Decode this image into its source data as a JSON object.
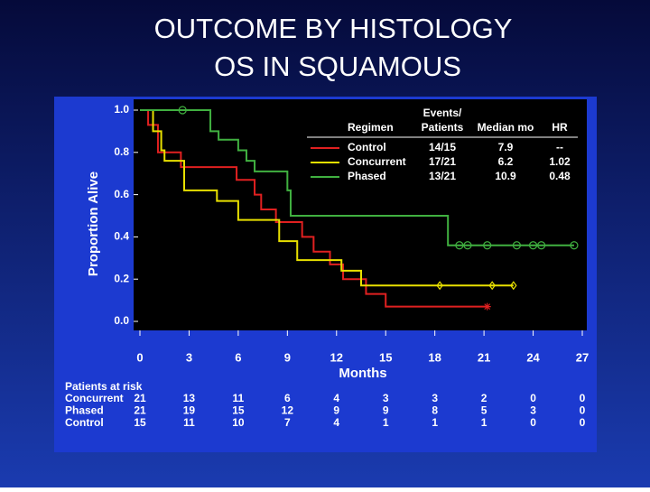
{
  "chart_data": {
    "type": "line",
    "step": true,
    "title": [
      "OUTCOME BY HISTOLOGY",
      "OS IN SQUAMOUS"
    ],
    "y_label": "Proportion Alive",
    "x_label": "Months",
    "xlim": [
      0,
      27
    ],
    "xticks": [
      0,
      3,
      6,
      9,
      12,
      15,
      18,
      21,
      24,
      27
    ],
    "ylim": [
      0,
      1.0
    ],
    "yticks": [
      {
        "value": 0,
        "label": "0.0"
      },
      0.2,
      0.4,
      0.6,
      0.8,
      {
        "value": 1,
        "label": "1.0"
      }
    ],
    "series": [
      {
        "name": "Control",
        "color": "#e02020",
        "marker": "star",
        "x": [
          0,
          0.5,
          1.1,
          2.5,
          5.9,
          7.0,
          7.4,
          8.3,
          9.9,
          10.6,
          11.6,
          12.4,
          13.8,
          15.0,
          21.2
        ],
        "values": [
          1.0,
          0.93,
          0.8,
          0.73,
          0.67,
          0.6,
          0.53,
          0.47,
          0.4,
          0.33,
          0.27,
          0.2,
          0.13,
          0.07,
          0.07
        ],
        "censor_x": [
          21.2
        ],
        "censor_values": [
          0.07
        ]
      },
      {
        "name": "Concurrent",
        "color": "#e8e000",
        "marker": "diamond",
        "x": [
          0,
          0.8,
          1.3,
          1.5,
          2.7,
          4.7,
          6.0,
          8.5,
          9.6,
          12.3,
          13.5,
          22.8
        ],
        "values": [
          1.0,
          0.9,
          0.81,
          0.76,
          0.62,
          0.57,
          0.48,
          0.38,
          0.29,
          0.24,
          0.17,
          0.17
        ],
        "censor_x": [
          18.3,
          21.5,
          22.8
        ],
        "censor_values": [
          0.17,
          0.17,
          0.17
        ]
      },
      {
        "name": "Phased",
        "color": "#40b040",
        "marker": "circle",
        "x": [
          0,
          4.3,
          4.8,
          6.0,
          6.5,
          7.0,
          9.0,
          9.2,
          18.8,
          26.5
        ],
        "values": [
          1.0,
          0.9,
          0.86,
          0.81,
          0.76,
          0.71,
          0.62,
          0.5,
          0.36,
          0.36
        ],
        "censor_x": [
          2.6,
          19.5,
          20.0,
          21.2,
          23.0,
          24.0,
          24.5,
          26.5
        ],
        "censor_values": [
          1.0,
          0.36,
          0.36,
          0.36,
          0.36,
          0.36,
          0.36,
          0.36
        ]
      }
    ],
    "legend_table": {
      "header": {
        "regimen": "Regimen",
        "events_line1": "Events/",
        "events_line2": "Patients",
        "median": "Median mo",
        "hr": "HR"
      },
      "rows": [
        {
          "events": "14/15",
          "median": "7.9",
          "hr": "--"
        },
        {
          "events": "17/21",
          "median": "6.2",
          "hr": "1.02"
        },
        {
          "events": "13/21",
          "median": "10.9",
          "hr": "0.48"
        }
      ]
    },
    "risk_table": {
      "title": "Patients at risk",
      "rows": [
        {
          "name": "Concurrent",
          "counts": [
            21,
            13,
            11,
            6,
            4,
            3,
            3,
            2,
            0,
            0
          ]
        },
        {
          "name": "Phased",
          "counts": [
            21,
            19,
            15,
            12,
            9,
            9,
            8,
            5,
            3,
            0
          ]
        },
        {
          "name": "Control",
          "counts": [
            15,
            11,
            10,
            7,
            4,
            1,
            1,
            1,
            0,
            0
          ]
        }
      ]
    }
  }
}
